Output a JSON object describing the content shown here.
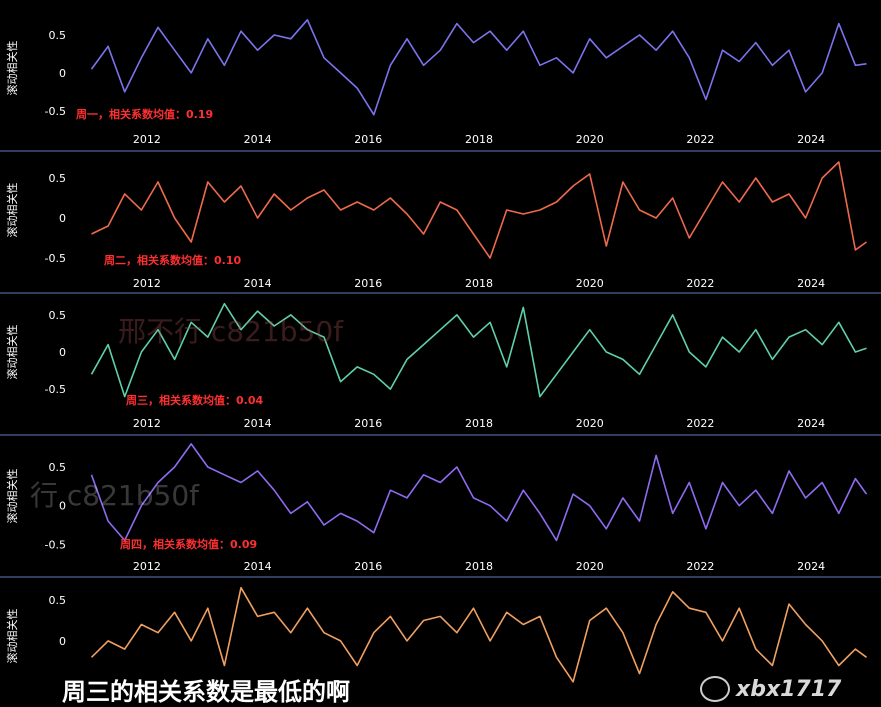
{
  "chart_data": [
    {
      "type": "line",
      "ylabel": "滚动相关性",
      "annotation": "周一，相关系数均值：0.19",
      "color": "#7b74ee",
      "annotation_color": "#ff3030",
      "xlim": [
        2010.9,
        2025.1
      ],
      "ylim": [
        -0.62,
        0.75
      ],
      "yticks": [
        0.5,
        0,
        -0.5
      ],
      "xticks": [
        2012,
        2014,
        2016,
        2018,
        2020,
        2022,
        2024
      ],
      "x": [
        2011.0,
        2011.3,
        2011.6,
        2011.9,
        2012.2,
        2012.5,
        2012.8,
        2013.1,
        2013.4,
        2013.7,
        2014.0,
        2014.3,
        2014.6,
        2014.9,
        2015.2,
        2015.5,
        2015.8,
        2016.1,
        2016.4,
        2016.7,
        2017.0,
        2017.3,
        2017.6,
        2017.9,
        2018.2,
        2018.5,
        2018.8,
        2019.1,
        2019.4,
        2019.7,
        2020.0,
        2020.3,
        2020.6,
        2020.9,
        2021.2,
        2021.5,
        2021.8,
        2022.1,
        2022.4,
        2022.7,
        2023.0,
        2023.3,
        2023.6,
        2023.9,
        2024.2,
        2024.5,
        2024.8,
        2025.0
      ],
      "y": [
        0.05,
        0.35,
        -0.25,
        0.2,
        0.6,
        0.3,
        0.0,
        0.45,
        0.1,
        0.55,
        0.3,
        0.5,
        0.45,
        0.7,
        0.2,
        0.0,
        -0.2,
        -0.55,
        0.1,
        0.45,
        0.1,
        0.3,
        0.65,
        0.4,
        0.55,
        0.3,
        0.55,
        0.1,
        0.2,
        0.0,
        0.45,
        0.2,
        0.35,
        0.5,
        0.3,
        0.55,
        0.2,
        -0.35,
        0.3,
        0.15,
        0.4,
        0.1,
        0.3,
        -0.25,
        0.0,
        0.65,
        0.1,
        0.12
      ]
    },
    {
      "type": "line",
      "ylabel": "滚动相关性",
      "annotation": "周二，相关系数均值：0.10",
      "color": "#ee6a4c",
      "annotation_color": "#ff3030",
      "xlim": [
        2010.9,
        2025.1
      ],
      "ylim": [
        -0.55,
        0.75
      ],
      "yticks": [
        0.5,
        0,
        -0.5
      ],
      "xticks": [
        2012,
        2014,
        2016,
        2018,
        2020,
        2022,
        2024
      ],
      "x": [
        2011.0,
        2011.3,
        2011.6,
        2011.9,
        2012.2,
        2012.5,
        2012.8,
        2013.1,
        2013.4,
        2013.7,
        2014.0,
        2014.3,
        2014.6,
        2014.9,
        2015.2,
        2015.5,
        2015.8,
        2016.1,
        2016.4,
        2016.7,
        2017.0,
        2017.3,
        2017.6,
        2017.9,
        2018.2,
        2018.5,
        2018.8,
        2019.1,
        2019.4,
        2019.7,
        2020.0,
        2020.3,
        2020.6,
        2020.9,
        2021.2,
        2021.5,
        2021.8,
        2022.1,
        2022.4,
        2022.7,
        2023.0,
        2023.3,
        2023.6,
        2023.9,
        2024.2,
        2024.5,
        2024.8,
        2025.0
      ],
      "y": [
        -0.2,
        -0.1,
        0.3,
        0.1,
        0.45,
        0.0,
        -0.3,
        0.45,
        0.2,
        0.4,
        0.0,
        0.3,
        0.1,
        0.25,
        0.35,
        0.1,
        0.2,
        0.1,
        0.25,
        0.05,
        -0.2,
        0.2,
        0.1,
        -0.2,
        -0.5,
        0.1,
        0.05,
        0.1,
        0.2,
        0.4,
        0.55,
        -0.35,
        0.45,
        0.1,
        0.0,
        0.25,
        -0.25,
        0.1,
        0.45,
        0.2,
        0.5,
        0.2,
        0.3,
        0.0,
        0.5,
        0.7,
        -0.4,
        -0.3
      ]
    },
    {
      "type": "line",
      "ylabel": "滚动相关性",
      "annotation": "周三，相关系数均值：0.04",
      "color": "#5fd0a8",
      "annotation_color": "#ff3030",
      "xlim": [
        2010.9,
        2025.1
      ],
      "ylim": [
        -0.7,
        0.7
      ],
      "yticks": [
        0.5,
        0,
        -0.5
      ],
      "xticks": [
        2012,
        2014,
        2016,
        2018,
        2020,
        2022,
        2024
      ],
      "x": [
        2011.0,
        2011.3,
        2011.6,
        2011.9,
        2012.2,
        2012.5,
        2012.8,
        2013.1,
        2013.4,
        2013.7,
        2014.0,
        2014.3,
        2014.6,
        2014.9,
        2015.2,
        2015.5,
        2015.8,
        2016.1,
        2016.4,
        2016.7,
        2017.0,
        2017.3,
        2017.6,
        2017.9,
        2018.2,
        2018.5,
        2018.8,
        2019.1,
        2019.4,
        2019.7,
        2020.0,
        2020.3,
        2020.6,
        2020.9,
        2021.2,
        2021.5,
        2021.8,
        2022.1,
        2022.4,
        2022.7,
        2023.0,
        2023.3,
        2023.6,
        2023.9,
        2024.2,
        2024.5,
        2024.8,
        2025.0
      ],
      "y": [
        -0.3,
        0.1,
        -0.6,
        0.0,
        0.3,
        -0.1,
        0.4,
        0.2,
        0.65,
        0.3,
        0.55,
        0.35,
        0.5,
        0.3,
        0.2,
        -0.4,
        -0.2,
        -0.3,
        -0.5,
        -0.1,
        0.1,
        0.3,
        0.5,
        0.2,
        0.4,
        -0.2,
        0.6,
        -0.6,
        -0.3,
        0.0,
        0.3,
        0.0,
        -0.1,
        -0.3,
        0.1,
        0.5,
        0.0,
        -0.2,
        0.2,
        0.0,
        0.3,
        -0.1,
        0.2,
        0.3,
        0.1,
        0.4,
        0.0,
        0.05
      ]
    },
    {
      "type": "line",
      "ylabel": "滚动相关性",
      "annotation": "周四，相关系数均值：0.09",
      "color": "#8e6bf0",
      "annotation_color": "#ff3030",
      "xlim": [
        2010.9,
        2025.1
      ],
      "ylim": [
        -0.6,
        0.85
      ],
      "yticks": [
        0.5,
        0,
        -0.5
      ],
      "xticks": [
        2012,
        2014,
        2016,
        2018,
        2020,
        2022,
        2024
      ],
      "x": [
        2011.0,
        2011.3,
        2011.6,
        2011.9,
        2012.2,
        2012.5,
        2012.8,
        2013.1,
        2013.4,
        2013.7,
        2014.0,
        2014.3,
        2014.6,
        2014.9,
        2015.2,
        2015.5,
        2015.8,
        2016.1,
        2016.4,
        2016.7,
        2017.0,
        2017.3,
        2017.6,
        2017.9,
        2018.2,
        2018.5,
        2018.8,
        2019.1,
        2019.4,
        2019.7,
        2020.0,
        2020.3,
        2020.6,
        2020.9,
        2021.2,
        2021.5,
        2021.8,
        2022.1,
        2022.4,
        2022.7,
        2023.0,
        2023.3,
        2023.6,
        2023.9,
        2024.2,
        2024.5,
        2024.8,
        2025.0
      ],
      "y": [
        0.4,
        -0.2,
        -0.45,
        0.0,
        0.3,
        0.5,
        0.8,
        0.5,
        0.4,
        0.3,
        0.45,
        0.2,
        -0.1,
        0.05,
        -0.25,
        -0.1,
        -0.2,
        -0.35,
        0.2,
        0.1,
        0.4,
        0.3,
        0.5,
        0.1,
        0.0,
        -0.2,
        0.2,
        -0.1,
        -0.45,
        0.15,
        0.0,
        -0.3,
        0.1,
        -0.2,
        0.65,
        -0.1,
        0.3,
        -0.3,
        0.3,
        0.0,
        0.2,
        -0.1,
        0.45,
        0.1,
        0.3,
        -0.1,
        0.35,
        0.15
      ]
    },
    {
      "type": "line",
      "ylabel": "滚动相关性",
      "color": "#f0a060",
      "xlim": [
        2010.9,
        2025.1
      ],
      "ylim": [
        -0.6,
        0.72
      ],
      "yticks": [
        0.5,
        0
      ],
      "x": [
        2011.0,
        2011.3,
        2011.6,
        2011.9,
        2012.2,
        2012.5,
        2012.8,
        2013.1,
        2013.4,
        2013.7,
        2014.0,
        2014.3,
        2014.6,
        2014.9,
        2015.2,
        2015.5,
        2015.8,
        2016.1,
        2016.4,
        2016.7,
        2017.0,
        2017.3,
        2017.6,
        2017.9,
        2018.2,
        2018.5,
        2018.8,
        2019.1,
        2019.4,
        2019.7,
        2020.0,
        2020.3,
        2020.6,
        2020.9,
        2021.2,
        2021.5,
        2021.8,
        2022.1,
        2022.4,
        2022.7,
        2023.0,
        2023.3,
        2023.6,
        2023.9,
        2024.2,
        2024.5,
        2024.8,
        2025.0
      ],
      "y": [
        -0.2,
        0.0,
        -0.1,
        0.2,
        0.1,
        0.35,
        0.0,
        0.4,
        -0.3,
        0.65,
        0.3,
        0.35,
        0.1,
        0.4,
        0.1,
        0.0,
        -0.3,
        0.1,
        0.3,
        0.0,
        0.25,
        0.3,
        0.1,
        0.4,
        0.0,
        0.35,
        0.2,
        0.3,
        -0.2,
        -0.5,
        0.25,
        0.4,
        0.1,
        -0.4,
        0.2,
        0.6,
        0.4,
        0.35,
        0.0,
        0.4,
        -0.1,
        -0.3,
        0.45,
        0.2,
        0.0,
        -0.3,
        -0.1,
        -0.2
      ]
    }
  ],
  "overlay": {
    "subtitle": "周三的相关系数是最低的啊",
    "logo_text": "xbx1717",
    "watermark1": "邢不行 c821b50f",
    "watermark2": "行 c821b50f"
  }
}
